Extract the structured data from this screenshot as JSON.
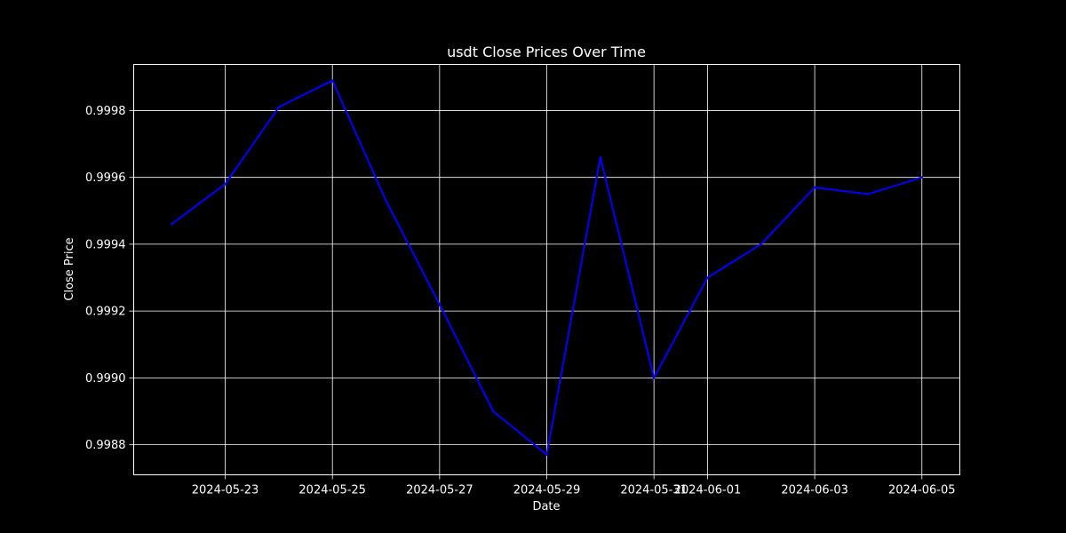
{
  "chart_data": {
    "type": "line",
    "title": "usdt Close Prices Over Time",
    "xlabel": "Date",
    "ylabel": "Close Price",
    "x": [
      "2024-05-22",
      "2024-05-23",
      "2024-05-24",
      "2024-05-25",
      "2024-05-26",
      "2024-05-27",
      "2024-05-28",
      "2024-05-29",
      "2024-05-30",
      "2024-05-31",
      "2024-06-01",
      "2024-06-02",
      "2024-06-03",
      "2024-06-04",
      "2024-06-05"
    ],
    "series": [
      {
        "values": [
          0.99946,
          0.99958,
          0.99981,
          0.99989,
          0.99953,
          0.99922,
          0.9989,
          0.99877,
          0.99966,
          0.999,
          0.9993,
          0.9994,
          0.99957,
          0.99955,
          0.9996
        ],
        "color": "#0000ff"
      }
    ],
    "x_ticks": [
      "2024-05-23",
      "2024-05-25",
      "2024-05-27",
      "2024-05-29",
      "2024-05-31",
      "2024-06-01",
      "2024-06-03",
      "2024-06-05"
    ],
    "y_ticks": [
      "0.9988",
      "0.9990",
      "0.9992",
      "0.9994",
      "0.9996",
      "0.9998"
    ],
    "xlim": [
      "2024-05-21T07:00",
      "2024-06-05T17:00"
    ],
    "ylim": [
      0.99871,
      0.999938
    ],
    "grid": true,
    "background": "#000000",
    "foreground": "#ffffff"
  }
}
